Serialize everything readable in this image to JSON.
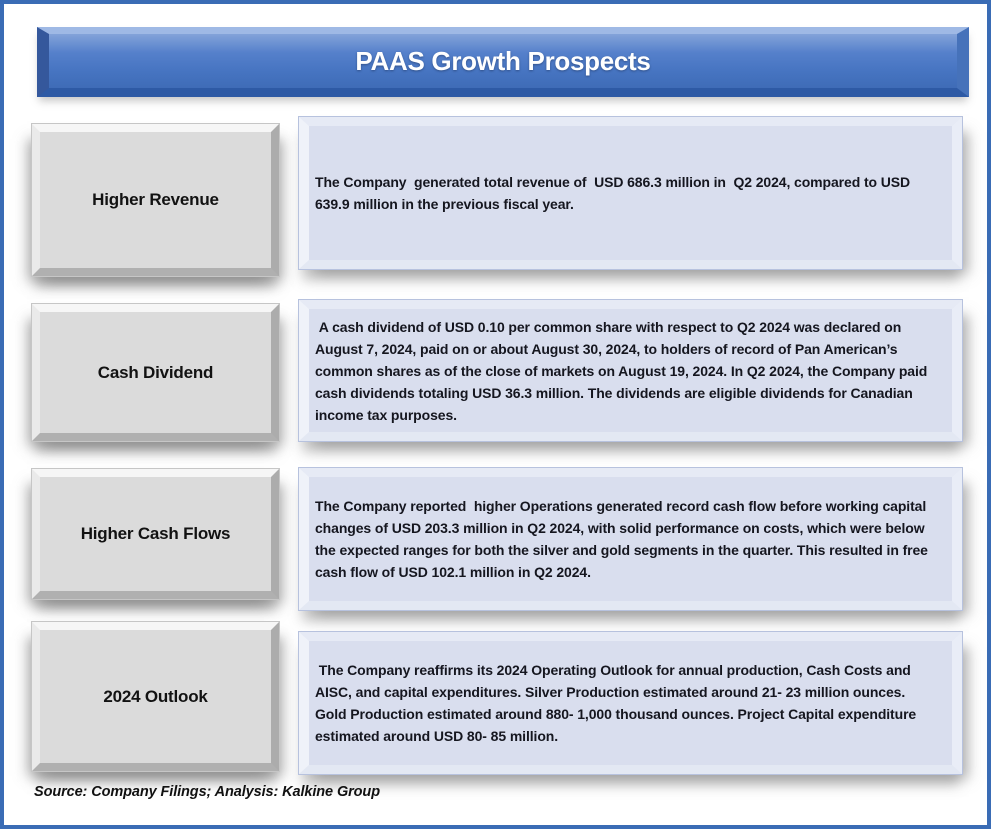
{
  "page": {
    "title": "PAAS Growth Prospects",
    "source_note": "Source: Company Filings; Analysis: Kalkine Group"
  },
  "rows": [
    {
      "label": "Higher Revenue",
      "description": "The Company  generated total revenue of  USD 686.3 million in  Q2 2024, compared to USD 639.9 million in the previous fiscal year."
    },
    {
      "label": "Cash Dividend",
      "description": " A cash dividend of USD 0.10 per common share with respect to Q2 2024 was declared on August 7, 2024, paid on or about August 30, 2024, to holders of record of Pan American’s common shares as of the close of markets on August 19, 2024. In Q2 2024, the Company paid cash dividends totaling USD 36.3 million. The dividends are eligible dividends for Canadian income tax purposes."
    },
    {
      "label": "Higher Cash Flows",
      "description": "The Company reported  higher Operations generated record cash flow before working capital changes of USD 203.3 million in Q2 2024, with solid performance on costs, which were below the expected ranges for both the silver and gold segments in the quarter. This resulted in free cash flow of USD 102.1 million in Q2 2024."
    },
    {
      "label": "2024 Outlook",
      "description": " The Company reaffirms its 2024 Operating Outlook for annual production, Cash Costs and AISC, and capital expenditures. Silver Production estimated around 21- 23 million ounces. Gold Production estimated around 880- 1,000 thousand ounces. Project Capital expenditure estimated around USD 80- 85 million."
    }
  ],
  "colors": {
    "page_border_blue": "#3a6cb5",
    "banner_blue": "#4674c1",
    "banner_text": "#ffffff",
    "label_box_gray": "#dbdbdb",
    "text_box_blue": "#d9deee",
    "body_text": "#15161f"
  }
}
